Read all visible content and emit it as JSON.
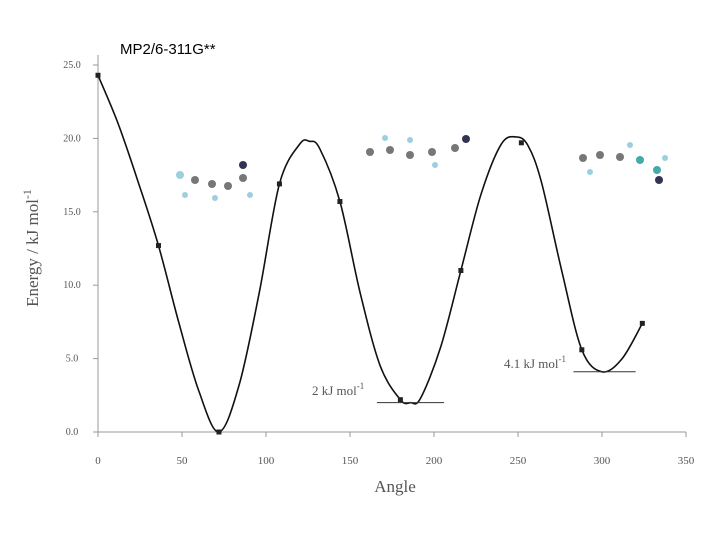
{
  "chart_data": {
    "type": "line",
    "title": "MP2/6-311G**",
    "x_label": "Angle",
    "y_label": "Energy / kJ mol",
    "y_label_sup": "-1",
    "x": [
      0,
      36,
      72,
      108,
      144,
      180,
      216,
      252,
      288,
      324
    ],
    "series": [
      {
        "color": "#222222",
        "values": [
          24.3,
          12.7,
          0.0,
          16.9,
          15.7,
          2.2,
          11.0,
          19.7,
          5.6,
          7.4
        ]
      }
    ],
    "curve": {
      "x": [
        0,
        12,
        24,
        36,
        48,
        60,
        72,
        84,
        96,
        108,
        120,
        126,
        132,
        144,
        156,
        168,
        180,
        186,
        192,
        204,
        216,
        228,
        240,
        249,
        256,
        264,
        276,
        288,
        300,
        312,
        324
      ],
      "values": [
        24.3,
        21.0,
        17.0,
        12.7,
        7.5,
        2.8,
        0.0,
        3.2,
        9.5,
        16.9,
        19.6,
        19.8,
        19.3,
        15.7,
        9.5,
        4.5,
        2.2,
        2.0,
        2.3,
        5.8,
        11.0,
        16.2,
        19.6,
        20.1,
        19.5,
        17.0,
        11.0,
        5.6,
        4.1,
        5.0,
        7.4
      ]
    },
    "annotations": [
      {
        "value": 2,
        "label": "2 kJ mol",
        "sup": "-1"
      },
      {
        "value": 4.1,
        "label": "4.1 kJ mol",
        "sup": "-1"
      }
    ],
    "xlim": [
      0,
      350
    ],
    "xticks": [
      0,
      50,
      100,
      150,
      200,
      250,
      300,
      350
    ],
    "ylim": [
      0,
      25
    ],
    "yticks": [
      {
        "value": 0,
        "label": "0.0"
      },
      {
        "value": 5,
        "label": "5.0"
      },
      {
        "value": 10,
        "label": "10.0"
      },
      {
        "value": 15,
        "label": "15.0"
      },
      {
        "value": 20,
        "label": "20.0"
      },
      {
        "value": 25,
        "label": "25.0"
      }
    ]
  }
}
